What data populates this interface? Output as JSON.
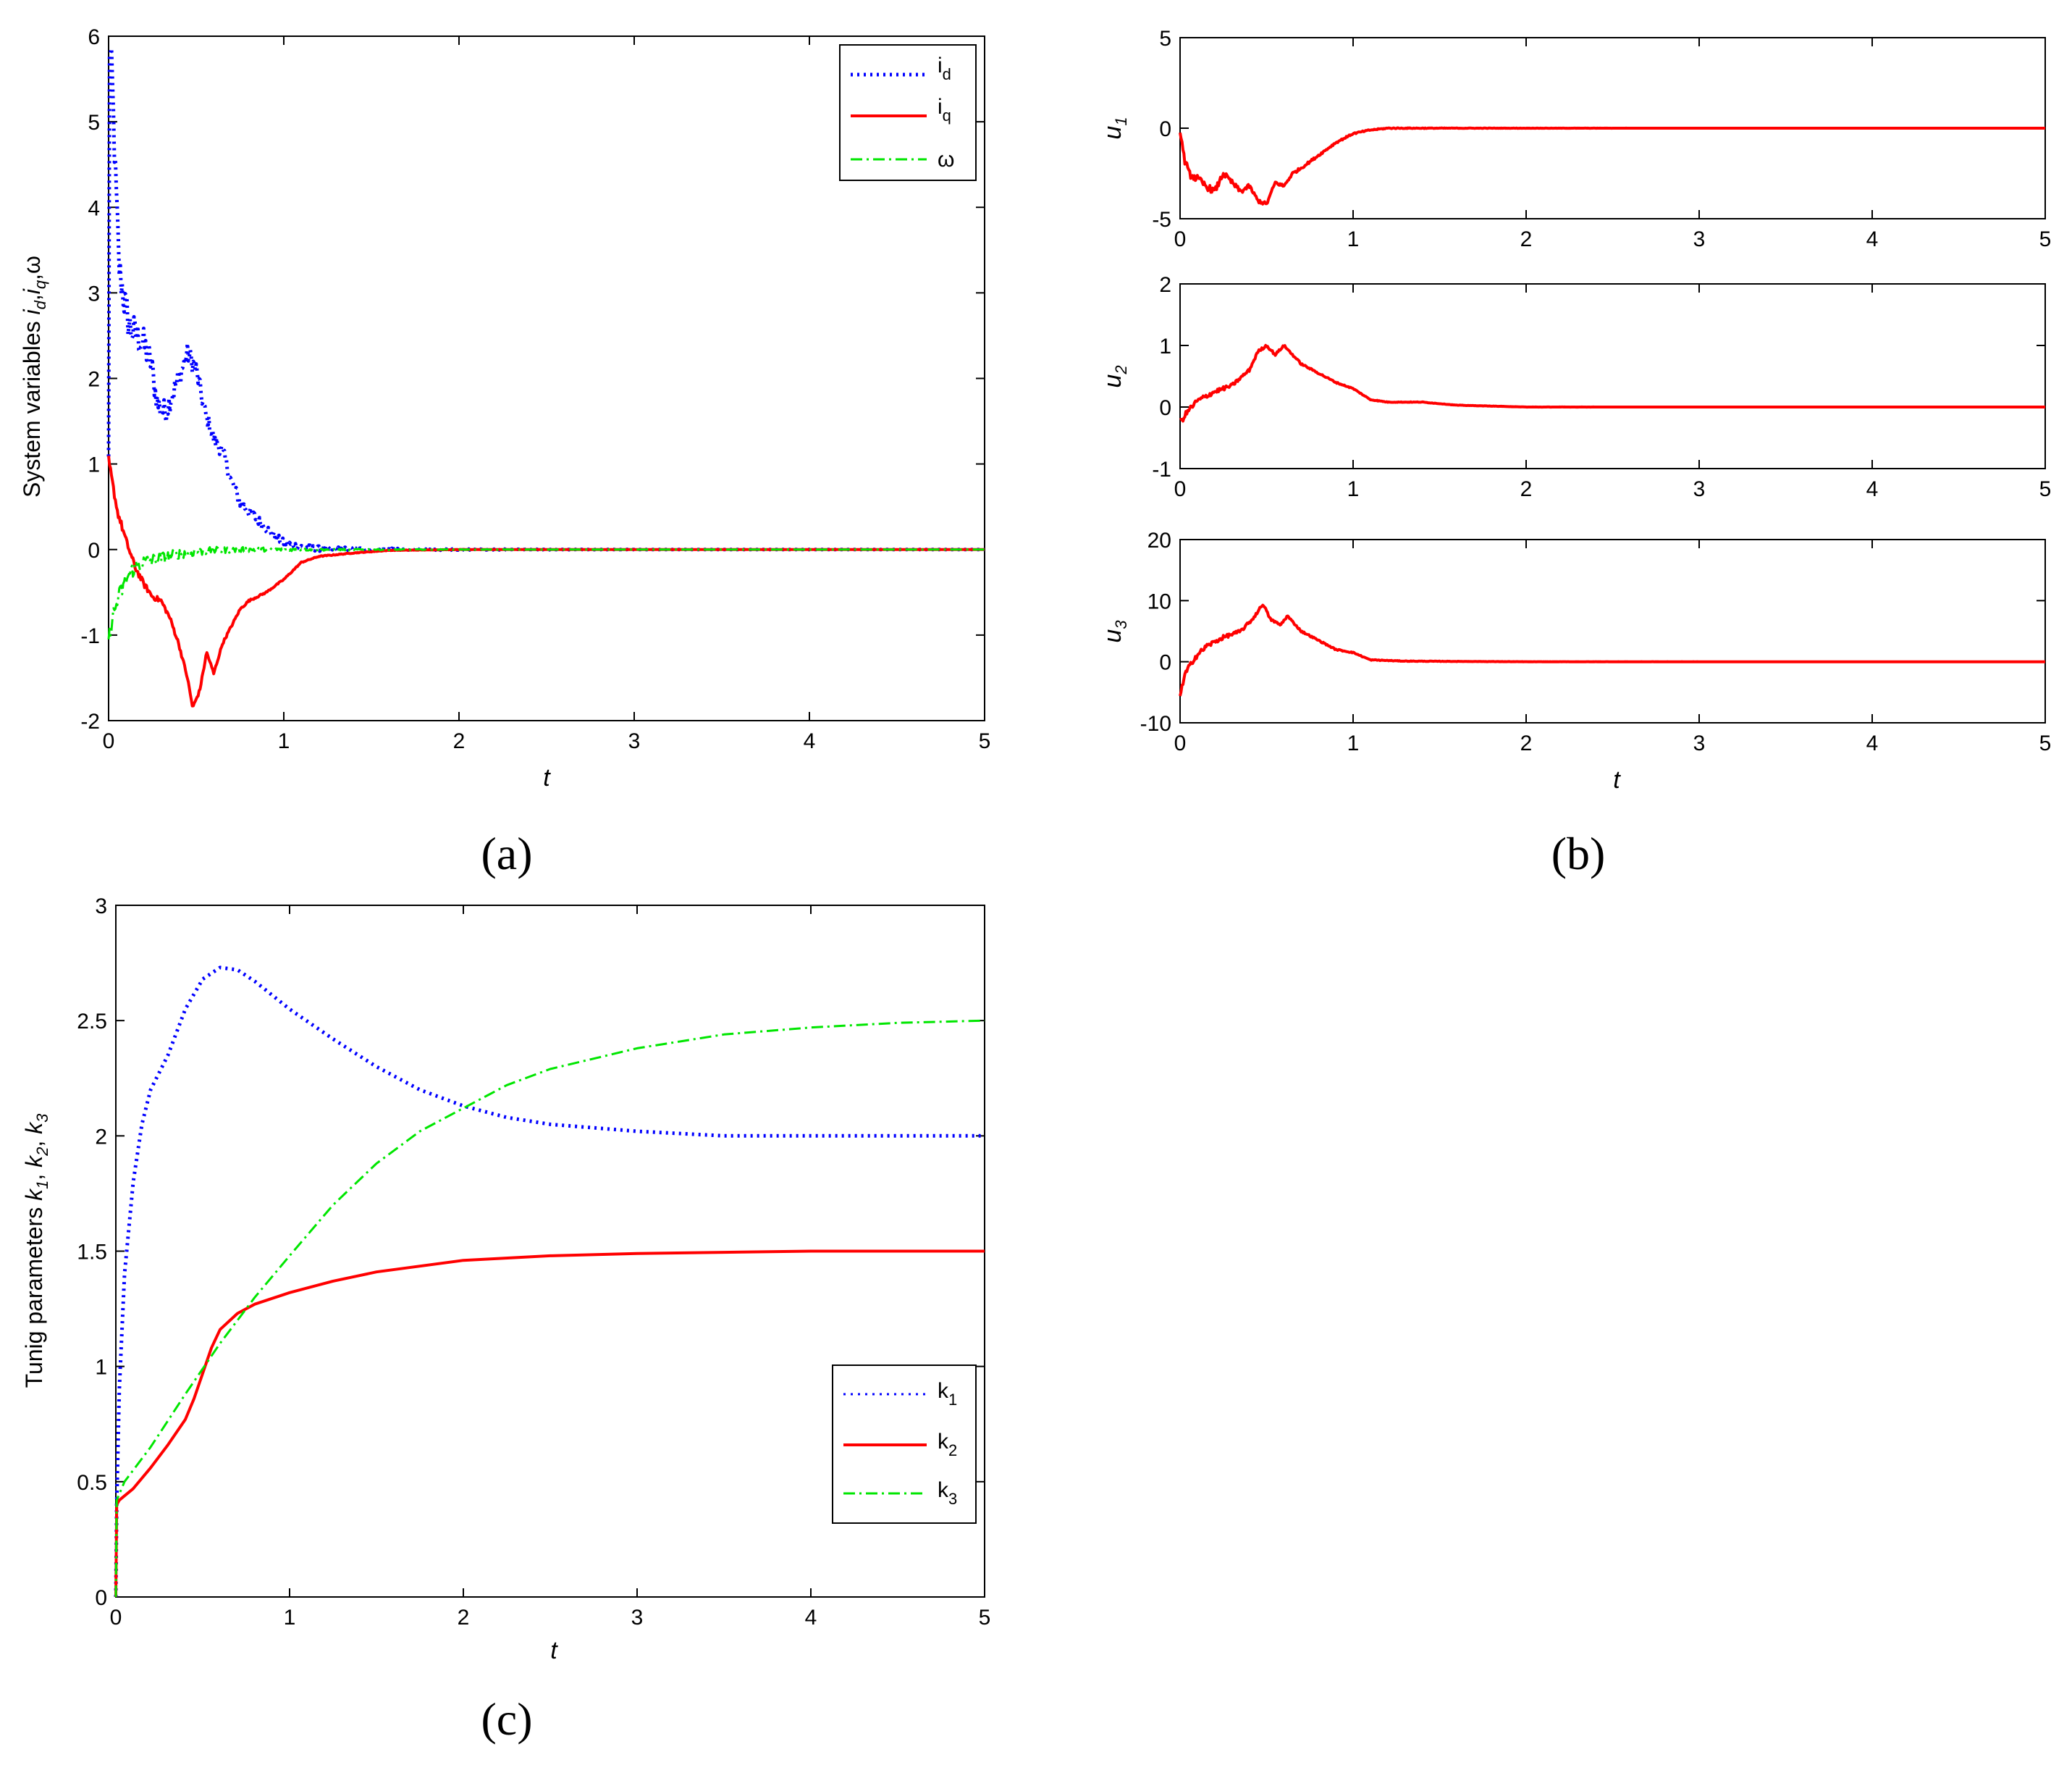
{
  "colors": {
    "blue": "#0000ff",
    "red": "#ff0000",
    "green": "#00e600",
    "axis": "#000000"
  },
  "chart_data": [
    {
      "id": "a",
      "type": "line",
      "caption": "(a)",
      "xlabel": "t",
      "ylabel": "System variables",
      "ylabel_math": {
        "v1": "i",
        "s1": "d",
        "v2": "i",
        "s2": "q",
        "v3": "ω"
      },
      "xlim": [
        0,
        5
      ],
      "ylim": [
        -2,
        6
      ],
      "xticks": [
        "0",
        "1",
        "2",
        "3",
        "4",
        "5"
      ],
      "yticks": [
        "-2",
        "-1",
        "0",
        "1",
        "2",
        "3",
        "4",
        "5",
        "6"
      ],
      "legend_position": "top-right",
      "series": [
        {
          "name": "i",
          "sub": "d",
          "style": "dotted",
          "color": "#0000ff",
          "noise": 0.28,
          "points": [
            [
              0,
              1.0
            ],
            [
              0.005,
              5.9
            ],
            [
              0.02,
              5.5
            ],
            [
              0.04,
              4.3
            ],
            [
              0.06,
              3.3
            ],
            [
              0.09,
              2.9
            ],
            [
              0.12,
              2.6
            ],
            [
              0.16,
              2.5
            ],
            [
              0.2,
              2.4
            ],
            [
              0.24,
              2.2
            ],
            [
              0.28,
              1.7
            ],
            [
              0.32,
              1.6
            ],
            [
              0.36,
              1.8
            ],
            [
              0.4,
              2.0
            ],
            [
              0.45,
              2.3
            ],
            [
              0.5,
              2.1
            ],
            [
              0.55,
              1.6
            ],
            [
              0.6,
              1.3
            ],
            [
              0.65,
              1.15
            ],
            [
              0.7,
              0.8
            ],
            [
              0.75,
              0.55
            ],
            [
              0.8,
              0.45
            ],
            [
              0.85,
              0.35
            ],
            [
              0.9,
              0.25
            ],
            [
              0.95,
              0.15
            ],
            [
              1.0,
              0.08
            ],
            [
              1.1,
              0.03
            ],
            [
              1.2,
              0.01
            ],
            [
              1.5,
              0.0
            ],
            [
              5,
              0.0
            ]
          ]
        },
        {
          "name": "i",
          "sub": "q",
          "style": "solid",
          "color": "#ff0000",
          "noise": 0.05,
          "points": [
            [
              0,
              1.05
            ],
            [
              0.02,
              0.8
            ],
            [
              0.05,
              0.45
            ],
            [
              0.1,
              0.1
            ],
            [
              0.15,
              -0.2
            ],
            [
              0.2,
              -0.4
            ],
            [
              0.25,
              -0.55
            ],
            [
              0.3,
              -0.6
            ],
            [
              0.35,
              -0.8
            ],
            [
              0.4,
              -1.1
            ],
            [
              0.45,
              -1.5
            ],
            [
              0.48,
              -1.85
            ],
            [
              0.52,
              -1.65
            ],
            [
              0.56,
              -1.2
            ],
            [
              0.6,
              -1.45
            ],
            [
              0.65,
              -1.1
            ],
            [
              0.7,
              -0.9
            ],
            [
              0.75,
              -0.7
            ],
            [
              0.8,
              -0.6
            ],
            [
              0.9,
              -0.5
            ],
            [
              1.0,
              -0.35
            ],
            [
              1.1,
              -0.15
            ],
            [
              1.2,
              -0.08
            ],
            [
              1.4,
              -0.04
            ],
            [
              1.6,
              -0.01
            ],
            [
              2,
              0.0
            ],
            [
              5,
              0.0
            ]
          ]
        },
        {
          "name": "ω",
          "sub": "",
          "style": "dashdot",
          "color": "#00e600",
          "noise": 0.12,
          "points": [
            [
              0,
              -1.15
            ],
            [
              0.01,
              -0.9
            ],
            [
              0.05,
              -0.6
            ],
            [
              0.1,
              -0.35
            ],
            [
              0.15,
              -0.2
            ],
            [
              0.2,
              -0.15
            ],
            [
              0.3,
              -0.1
            ],
            [
              0.4,
              -0.05
            ],
            [
              0.6,
              -0.01
            ],
            [
              0.8,
              0.0
            ],
            [
              5,
              0.0
            ]
          ]
        }
      ]
    },
    {
      "id": "b1",
      "type": "line",
      "caption": "(b)",
      "xlabel": "",
      "ylabel": "u",
      "ylabel_sub": "1",
      "xlim": [
        0,
        5
      ],
      "ylim": [
        -5,
        5
      ],
      "xticks": [
        "0",
        "1",
        "2",
        "3",
        "4",
        "5"
      ],
      "yticks": [
        "-5",
        "0",
        "5"
      ],
      "series": [
        {
          "name": "u1",
          "style": "solid",
          "color": "#ff0000",
          "noise": 0.25,
          "points": [
            [
              0,
              0
            ],
            [
              0.02,
              -1.5
            ],
            [
              0.05,
              -2.5
            ],
            [
              0.1,
              -2.8
            ],
            [
              0.15,
              -3.2
            ],
            [
              0.2,
              -3.5
            ],
            [
              0.25,
              -2.5
            ],
            [
              0.3,
              -3.0
            ],
            [
              0.35,
              -3.5
            ],
            [
              0.4,
              -3.2
            ],
            [
              0.45,
              -4.0
            ],
            [
              0.5,
              -4.2
            ],
            [
              0.55,
              -3.0
            ],
            [
              0.6,
              -3.2
            ],
            [
              0.65,
              -2.5
            ],
            [
              0.7,
              -2.2
            ],
            [
              0.8,
              -1.5
            ],
            [
              0.9,
              -0.8
            ],
            [
              1.0,
              -0.3
            ],
            [
              1.1,
              -0.1
            ],
            [
              1.2,
              0.0
            ],
            [
              5,
              0.0
            ]
          ]
        }
      ]
    },
    {
      "id": "b2",
      "type": "line",
      "xlabel": "",
      "ylabel": "u",
      "ylabel_sub": "2",
      "xlim": [
        0,
        5
      ],
      "ylim": [
        -1,
        2
      ],
      "xticks": [
        "0",
        "1",
        "2",
        "3",
        "4",
        "5"
      ],
      "yticks": [
        "-1",
        "0",
        "1",
        "2"
      ],
      "series": [
        {
          "name": "u2",
          "style": "solid",
          "color": "#ff0000",
          "noise": 0.05,
          "points": [
            [
              0,
              -0.25
            ],
            [
              0.05,
              -0.05
            ],
            [
              0.1,
              0.1
            ],
            [
              0.2,
              0.25
            ],
            [
              0.3,
              0.35
            ],
            [
              0.4,
              0.6
            ],
            [
              0.45,
              0.9
            ],
            [
              0.5,
              1.0
            ],
            [
              0.55,
              0.85
            ],
            [
              0.6,
              1.0
            ],
            [
              0.65,
              0.85
            ],
            [
              0.7,
              0.7
            ],
            [
              0.8,
              0.55
            ],
            [
              0.9,
              0.4
            ],
            [
              1.0,
              0.3
            ],
            [
              1.1,
              0.12
            ],
            [
              1.2,
              0.08
            ],
            [
              1.4,
              0.08
            ],
            [
              1.6,
              0.03
            ],
            [
              2,
              0.0
            ],
            [
              5,
              0.0
            ]
          ]
        }
      ]
    },
    {
      "id": "b3",
      "type": "line",
      "xlabel": "t",
      "ylabel": "u",
      "ylabel_sub": "3",
      "xlim": [
        0,
        5
      ],
      "ylim": [
        -10,
        20
      ],
      "xticks": [
        "0",
        "1",
        "2",
        "3",
        "4",
        "5"
      ],
      "yticks": [
        "-10",
        "0",
        "10",
        "20"
      ],
      "series": [
        {
          "name": "u3",
          "style": "solid",
          "color": "#ff0000",
          "noise": 0.5,
          "points": [
            [
              0,
              -5.5
            ],
            [
              0.03,
              -2
            ],
            [
              0.08,
              0.5
            ],
            [
              0.15,
              2.5
            ],
            [
              0.25,
              4
            ],
            [
              0.35,
              5
            ],
            [
              0.42,
              7
            ],
            [
              0.48,
              9.5
            ],
            [
              0.52,
              7
            ],
            [
              0.58,
              6
            ],
            [
              0.62,
              7.5
            ],
            [
              0.7,
              5
            ],
            [
              0.8,
              3.5
            ],
            [
              0.9,
              2
            ],
            [
              1.0,
              1.5
            ],
            [
              1.1,
              0.3
            ],
            [
              1.3,
              0.1
            ],
            [
              1.6,
              0.05
            ],
            [
              2,
              0.0
            ],
            [
              5,
              0.0
            ]
          ]
        }
      ]
    },
    {
      "id": "c",
      "type": "line",
      "caption": "(c)",
      "xlabel": "t",
      "ylabel": "Tunig parameters",
      "ylabel_math": {
        "v1": "k",
        "s1": "1",
        "v2": "k",
        "s2": "2",
        "v3": "k",
        "s3": "3"
      },
      "xlim": [
        0,
        5
      ],
      "ylim": [
        0,
        3
      ],
      "xticks": [
        "0",
        "1",
        "2",
        "3",
        "4",
        "5"
      ],
      "yticks": [
        "0",
        "0.5",
        "1",
        "1.5",
        "2",
        "2.5",
        "3"
      ],
      "legend_position": "bottom-right",
      "series": [
        {
          "name": "k",
          "sub": "1",
          "style": "dotted",
          "color": "#0000ff",
          "noise": 0,
          "points": [
            [
              0,
              0
            ],
            [
              0.005,
              0.4
            ],
            [
              0.02,
              0.9
            ],
            [
              0.05,
              1.4
            ],
            [
              0.1,
              1.8
            ],
            [
              0.15,
              2.05
            ],
            [
              0.2,
              2.2
            ],
            [
              0.3,
              2.35
            ],
            [
              0.4,
              2.55
            ],
            [
              0.5,
              2.68
            ],
            [
              0.6,
              2.73
            ],
            [
              0.7,
              2.72
            ],
            [
              0.8,
              2.67
            ],
            [
              1.0,
              2.55
            ],
            [
              1.25,
              2.42
            ],
            [
              1.5,
              2.3
            ],
            [
              1.75,
              2.2
            ],
            [
              2,
              2.13
            ],
            [
              2.25,
              2.08
            ],
            [
              2.5,
              2.05
            ],
            [
              3,
              2.02
            ],
            [
              3.5,
              2.0
            ],
            [
              4,
              2.0
            ],
            [
              5,
              2.0
            ]
          ]
        },
        {
          "name": "k",
          "sub": "2",
          "style": "solid",
          "color": "#ff0000",
          "noise": 0,
          "points": [
            [
              0,
              0
            ],
            [
              0.005,
              0.4
            ],
            [
              0.02,
              0.42
            ],
            [
              0.1,
              0.47
            ],
            [
              0.2,
              0.56
            ],
            [
              0.3,
              0.66
            ],
            [
              0.4,
              0.77
            ],
            [
              0.45,
              0.86
            ],
            [
              0.5,
              0.97
            ],
            [
              0.55,
              1.08
            ],
            [
              0.6,
              1.16
            ],
            [
              0.7,
              1.23
            ],
            [
              0.8,
              1.27
            ],
            [
              1.0,
              1.32
            ],
            [
              1.25,
              1.37
            ],
            [
              1.5,
              1.41
            ],
            [
              2,
              1.46
            ],
            [
              2.5,
              1.48
            ],
            [
              3,
              1.49
            ],
            [
              3.5,
              1.495
            ],
            [
              4,
              1.5
            ],
            [
              5,
              1.5
            ]
          ]
        },
        {
          "name": "k",
          "sub": "3",
          "style": "dashdot",
          "color": "#00e600",
          "noise": 0,
          "points": [
            [
              0,
              0
            ],
            [
              0.005,
              0.42
            ],
            [
              0.05,
              0.5
            ],
            [
              0.2,
              0.65
            ],
            [
              0.4,
              0.88
            ],
            [
              0.6,
              1.1
            ],
            [
              0.8,
              1.3
            ],
            [
              1.0,
              1.48
            ],
            [
              1.25,
              1.7
            ],
            [
              1.5,
              1.88
            ],
            [
              1.75,
              2.02
            ],
            [
              2,
              2.12
            ],
            [
              2.25,
              2.22
            ],
            [
              2.5,
              2.29
            ],
            [
              3,
              2.38
            ],
            [
              3.5,
              2.44
            ],
            [
              4,
              2.47
            ],
            [
              4.5,
              2.49
            ],
            [
              5,
              2.5
            ]
          ]
        }
      ]
    }
  ]
}
